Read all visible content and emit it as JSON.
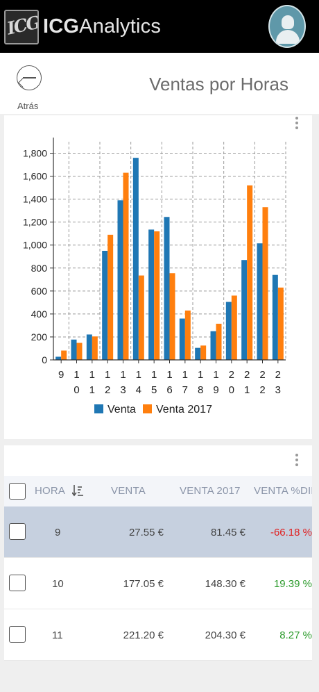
{
  "app": {
    "brand_prefix": "ICG",
    "brand_suffix": "Analytics",
    "logo_text": "ICG"
  },
  "header": {
    "back_label": "Atrás",
    "title": "Ventas por Horas"
  },
  "chart_data": {
    "type": "bar",
    "categories": [
      "9",
      "10",
      "11",
      "12",
      "13",
      "14",
      "15",
      "16",
      "17",
      "18",
      "19",
      "20",
      "21",
      "22",
      "23"
    ],
    "category_labels": [
      [
        "9"
      ],
      [
        "1",
        "0"
      ],
      [
        "1",
        "1"
      ],
      [
        "1",
        "2"
      ],
      [
        "1",
        "3"
      ],
      [
        "1",
        "4"
      ],
      [
        "1",
        "5"
      ],
      [
        "1",
        "6"
      ],
      [
        "1",
        "7"
      ],
      [
        "1",
        "8"
      ],
      [
        "1",
        "9"
      ],
      [
        "2",
        "0"
      ],
      [
        "2",
        "1"
      ],
      [
        "2",
        "2"
      ],
      [
        "2",
        "3"
      ]
    ],
    "series": [
      {
        "name": "Venta",
        "color": "#1f77b4",
        "values": [
          27.55,
          177.05,
          221.2,
          950,
          1390,
          1760,
          1135,
          1245,
          360,
          105,
          250,
          505,
          870,
          1015,
          740
        ]
      },
      {
        "name": "Venta 2017",
        "color": "#ff7f0e",
        "values": [
          81.45,
          148.3,
          204.3,
          1090,
          1630,
          735,
          1120,
          755,
          430,
          125,
          315,
          560,
          1520,
          1330,
          630
        ]
      }
    ],
    "yticks": [
      "0",
      "200",
      "400",
      "600",
      "800",
      "1,000",
      "1,200",
      "1,400",
      "1,600",
      "1,800"
    ],
    "ylim": [
      0,
      1900
    ],
    "grid": true,
    "legend": "bottom"
  },
  "table": {
    "columns": {
      "hora": "HORA",
      "venta": "VENTA",
      "venta2017": "VENTA 2017",
      "dif": "VENTA %DIF"
    },
    "rows": [
      {
        "hora": "9",
        "venta": "27.55 €",
        "venta2017": "81.45 €",
        "dif": "-66.18 %",
        "selected": true
      },
      {
        "hora": "10",
        "venta": "177.05 €",
        "venta2017": "148.30 €",
        "dif": "19.39 %",
        "selected": false
      },
      {
        "hora": "11",
        "venta": "221.20 €",
        "venta2017": "204.30 €",
        "dif": "8.27 %",
        "selected": false
      }
    ]
  },
  "icons": {
    "menu": "kebab-menu-icon",
    "sort": "sort-descending-icon",
    "back": "arrow-left-icon",
    "avatar": "user-avatar-icon"
  }
}
